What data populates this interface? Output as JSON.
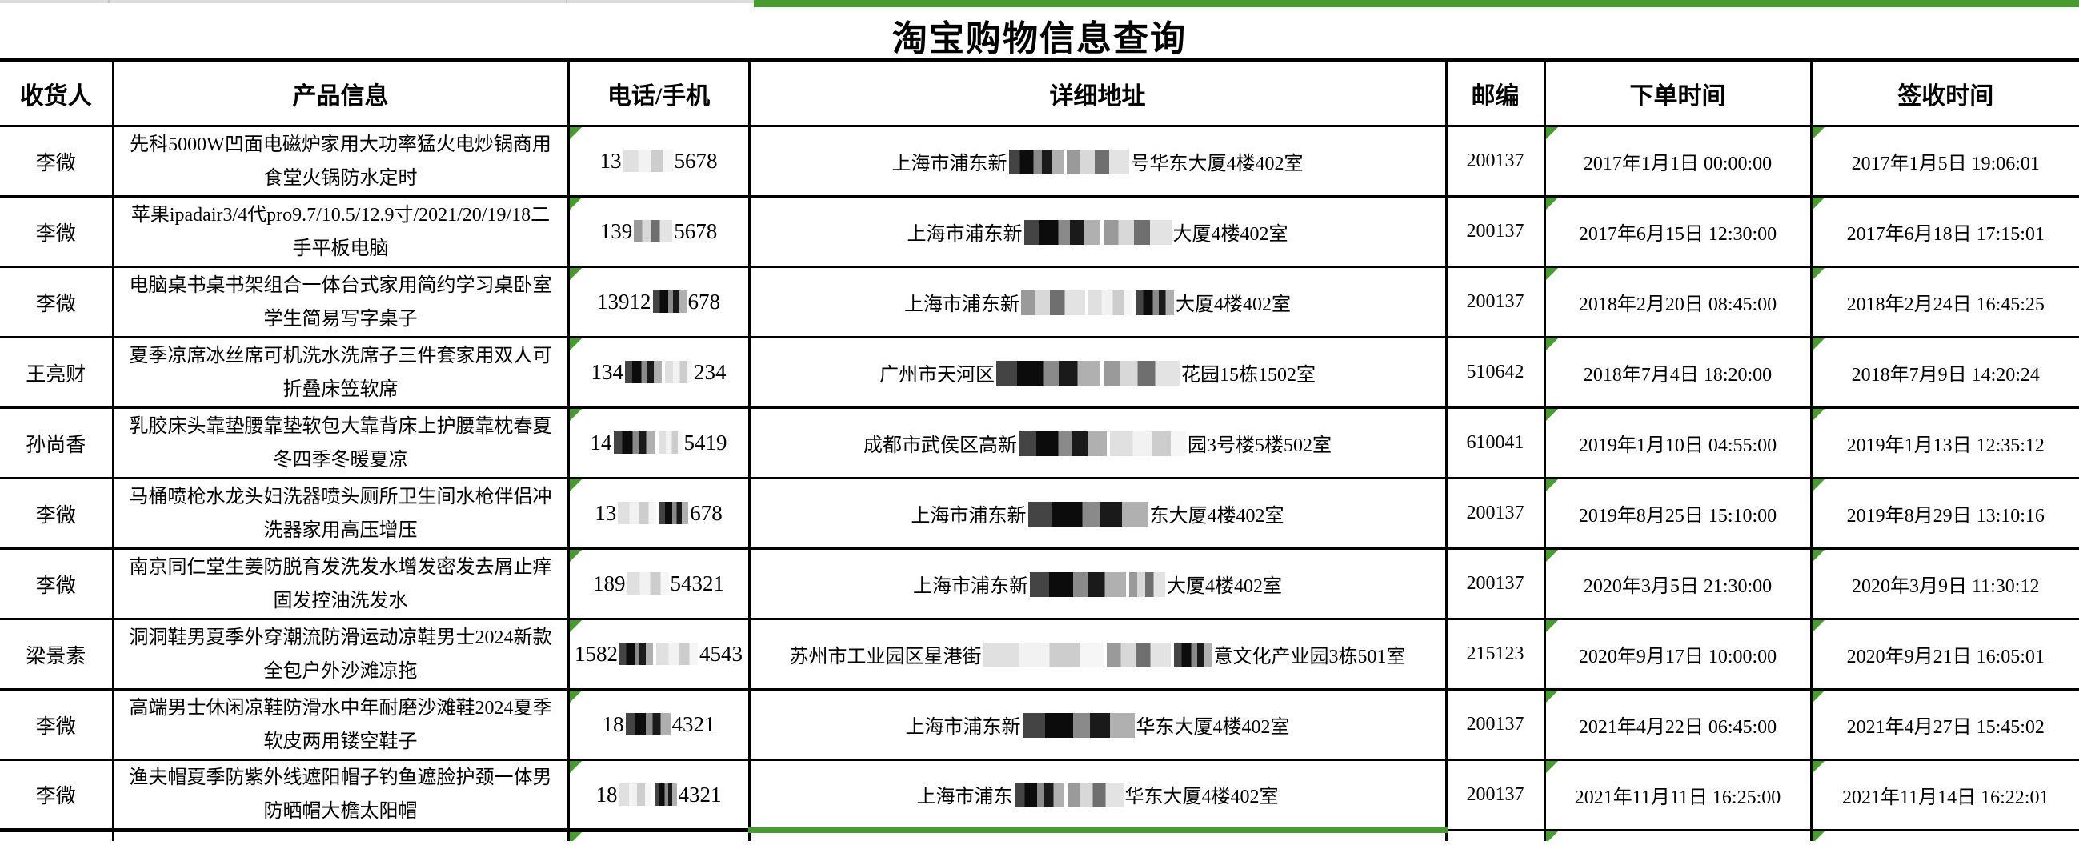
{
  "title": "淘宝购物信息查询",
  "colors": {
    "accent_green": "#479b2f",
    "grid_black": "#000000",
    "sheet_edge_gray": "#dcdcdc"
  },
  "columns": [
    {
      "key": "recipient",
      "label": "收货人"
    },
    {
      "key": "product",
      "label": "产品信息"
    },
    {
      "key": "phone",
      "label": "电话/手机"
    },
    {
      "key": "address",
      "label": "详细地址"
    },
    {
      "key": "zip",
      "label": "邮编"
    },
    {
      "key": "order_time",
      "label": "下单时间"
    },
    {
      "key": "sign_time",
      "label": "签收时间"
    }
  ],
  "comment_marker_columns": [
    "phone",
    "order_time",
    "sign_time"
  ],
  "rows": [
    {
      "recipient": "李微",
      "product": "先科5000W凹面电磁炉家用大功率猛火电炒锅商用食堂火锅防水定时",
      "phone": [
        {
          "t": "13"
        },
        {
          "r": 62,
          "s": "l"
        },
        {
          "t": "5678"
        }
      ],
      "address": [
        {
          "t": "上海市浦东新"
        },
        {
          "r": 68,
          "s": "d"
        },
        {
          "r": 78,
          "s": "m"
        },
        {
          "t": "号华东大厦4楼402室"
        }
      ],
      "zip": "200137",
      "order_time": "2017年1月1日 00:00:00",
      "sign_time": "2017年1月5日 19:06:01"
    },
    {
      "recipient": "李微",
      "product": "苹果ipadair3/4代pro9.7/10.5/12.9寸/2021/20/19/18二手平板电脑",
      "phone": [
        {
          "t": "139"
        },
        {
          "r": 48,
          "s": "m"
        },
        {
          "t": "5678"
        }
      ],
      "address": [
        {
          "t": "上海市浦东新"
        },
        {
          "r": 95,
          "s": "d"
        },
        {
          "r": 85,
          "s": "m"
        },
        {
          "t": "大厦4楼402室"
        }
      ],
      "zip": "200137",
      "order_time": "2017年6月15日 12:30:00",
      "sign_time": "2017年6月18日 17:15:01"
    },
    {
      "recipient": "李微",
      "product": "电脑桌书桌书架组合一体台式家用简约学习桌卧室学生简易写字桌子",
      "phone": [
        {
          "t": "13912"
        },
        {
          "r": 42,
          "s": "d"
        },
        {
          "t": "678"
        }
      ],
      "address": [
        {
          "t": "上海市浦东新"
        },
        {
          "r": 80,
          "s": "m"
        },
        {
          "r": 55,
          "s": "l"
        },
        {
          "r": 48,
          "s": "d"
        },
        {
          "t": "大厦4楼402室"
        }
      ],
      "zip": "200137",
      "order_time": "2018年2月20日 08:45:00",
      "sign_time": "2018年2月24日 16:45:25"
    },
    {
      "recipient": "王亮财",
      "product": "夏季凉席冰丝席可机洗水洗席子三件套家用双人可折叠床笠软席",
      "phone": [
        {
          "t": "134"
        },
        {
          "r": 46,
          "s": "d"
        },
        {
          "r": 34,
          "s": "l"
        },
        {
          "t": "234"
        }
      ],
      "address": [
        {
          "t": "广州市天河区"
        },
        {
          "r": 130,
          "s": "d"
        },
        {
          "r": 95,
          "s": "m"
        },
        {
          "t": "花园15栋1502室"
        }
      ],
      "zip": "510642",
      "order_time": "2018年7月4日 18:20:00",
      "sign_time": "2018年7月9日 14:20:24"
    },
    {
      "recipient": "孙尚香",
      "product": "乳胶床头靠垫腰靠垫软包大靠背床上护腰靠枕春夏冬四季冬暖夏凉",
      "phone": [
        {
          "t": "14"
        },
        {
          "r": 52,
          "s": "d"
        },
        {
          "r": 30,
          "s": "l"
        },
        {
          "t": "5419"
        }
      ],
      "address": [
        {
          "t": "成都市武侯区高新"
        },
        {
          "r": 110,
          "s": "d"
        },
        {
          "r": 95,
          "s": "l"
        },
        {
          "t": "园3号楼5楼502室"
        }
      ],
      "zip": "610041",
      "order_time": "2019年1月10日 04:55:00",
      "sign_time": "2019年1月13日 12:35:12"
    },
    {
      "recipient": "李微",
      "product": "马桶喷枪水龙头妇洗器喷头厕所卫生间水枪伴侣冲洗器家用高压增压",
      "phone": [
        {
          "t": "13"
        },
        {
          "r": 48,
          "s": "l"
        },
        {
          "r": 36,
          "s": "d"
        },
        {
          "t": "678"
        }
      ],
      "address": [
        {
          "t": "上海市浦东新"
        },
        {
          "r": 150,
          "s": "d"
        },
        {
          "t": "东大厦4楼402室"
        }
      ],
      "zip": "200137",
      "order_time": "2019年8月25日 15:10:00",
      "sign_time": "2019年8月29日 13:10:16"
    },
    {
      "recipient": "李微",
      "product": "南京同仁堂生姜防脱育发洗发水增发密发去屑止痒固发控油洗发水",
      "phone": [
        {
          "t": "189"
        },
        {
          "r": 52,
          "s": "l"
        },
        {
          "t": "54321"
        }
      ],
      "address": [
        {
          "t": "上海市浦东新"
        },
        {
          "r": 120,
          "s": "d"
        },
        {
          "r": 45,
          "s": "m"
        },
        {
          "t": "大厦4楼402室"
        }
      ],
      "zip": "200137",
      "order_time": "2020年3月5日 21:30:00",
      "sign_time": "2020年3月9日 11:30:12"
    },
    {
      "recipient": "梁景素",
      "product": "洞洞鞋男夏季外穿潮流防滑运动凉鞋男士2024新款全包户外沙滩凉拖",
      "phone": [
        {
          "t": "1582"
        },
        {
          "r": 42,
          "s": "d"
        },
        {
          "r": 52,
          "s": "l"
        },
        {
          "t": "4543"
        }
      ],
      "address": [
        {
          "t": "苏州市工业园区星港街"
        },
        {
          "r": 150,
          "s": "l"
        },
        {
          "r": 80,
          "s": "m"
        },
        {
          "r": 48,
          "s": "d"
        },
        {
          "t": "意文化产业园3栋501室"
        }
      ],
      "zip": "215123",
      "order_time": "2020年9月17日 10:00:00",
      "sign_time": "2020年9月21日 16:05:01"
    },
    {
      "recipient": "李微",
      "product": "高端男士休闲凉鞋防滑水中年耐磨沙滩鞋2024夏季软皮两用镂空鞋子",
      "phone": [
        {
          "t": "18"
        },
        {
          "r": 56,
          "s": "d"
        },
        {
          "t": "4321"
        }
      ],
      "address": [
        {
          "t": "上海市浦东新"
        },
        {
          "r": 140,
          "s": "d"
        },
        {
          "t": "华东大厦4楼402室"
        }
      ],
      "zip": "200137",
      "order_time": "2021年4月22日 06:45:00",
      "sign_time": "2021年4月27日 15:45:02"
    },
    {
      "recipient": "李微",
      "product": "渔夫帽夏季防紫外线遮阳帽子钓鱼遮脸护颈一体男防晒帽大檐太阳帽",
      "phone": [
        {
          "t": "18"
        },
        {
          "r": 40,
          "s": "l"
        },
        {
          "r": 28,
          "s": "d"
        },
        {
          "t": "4321"
        }
      ],
      "address": [
        {
          "t": "上海市浦东"
        },
        {
          "r": 62,
          "s": "d"
        },
        {
          "r": 70,
          "s": "m"
        },
        {
          "t": "华东大厦4楼402室"
        }
      ],
      "zip": "200137",
      "order_time": "2021年11月11日 16:25:00",
      "sign_time": "2021年11月14日 16:22:01"
    }
  ]
}
